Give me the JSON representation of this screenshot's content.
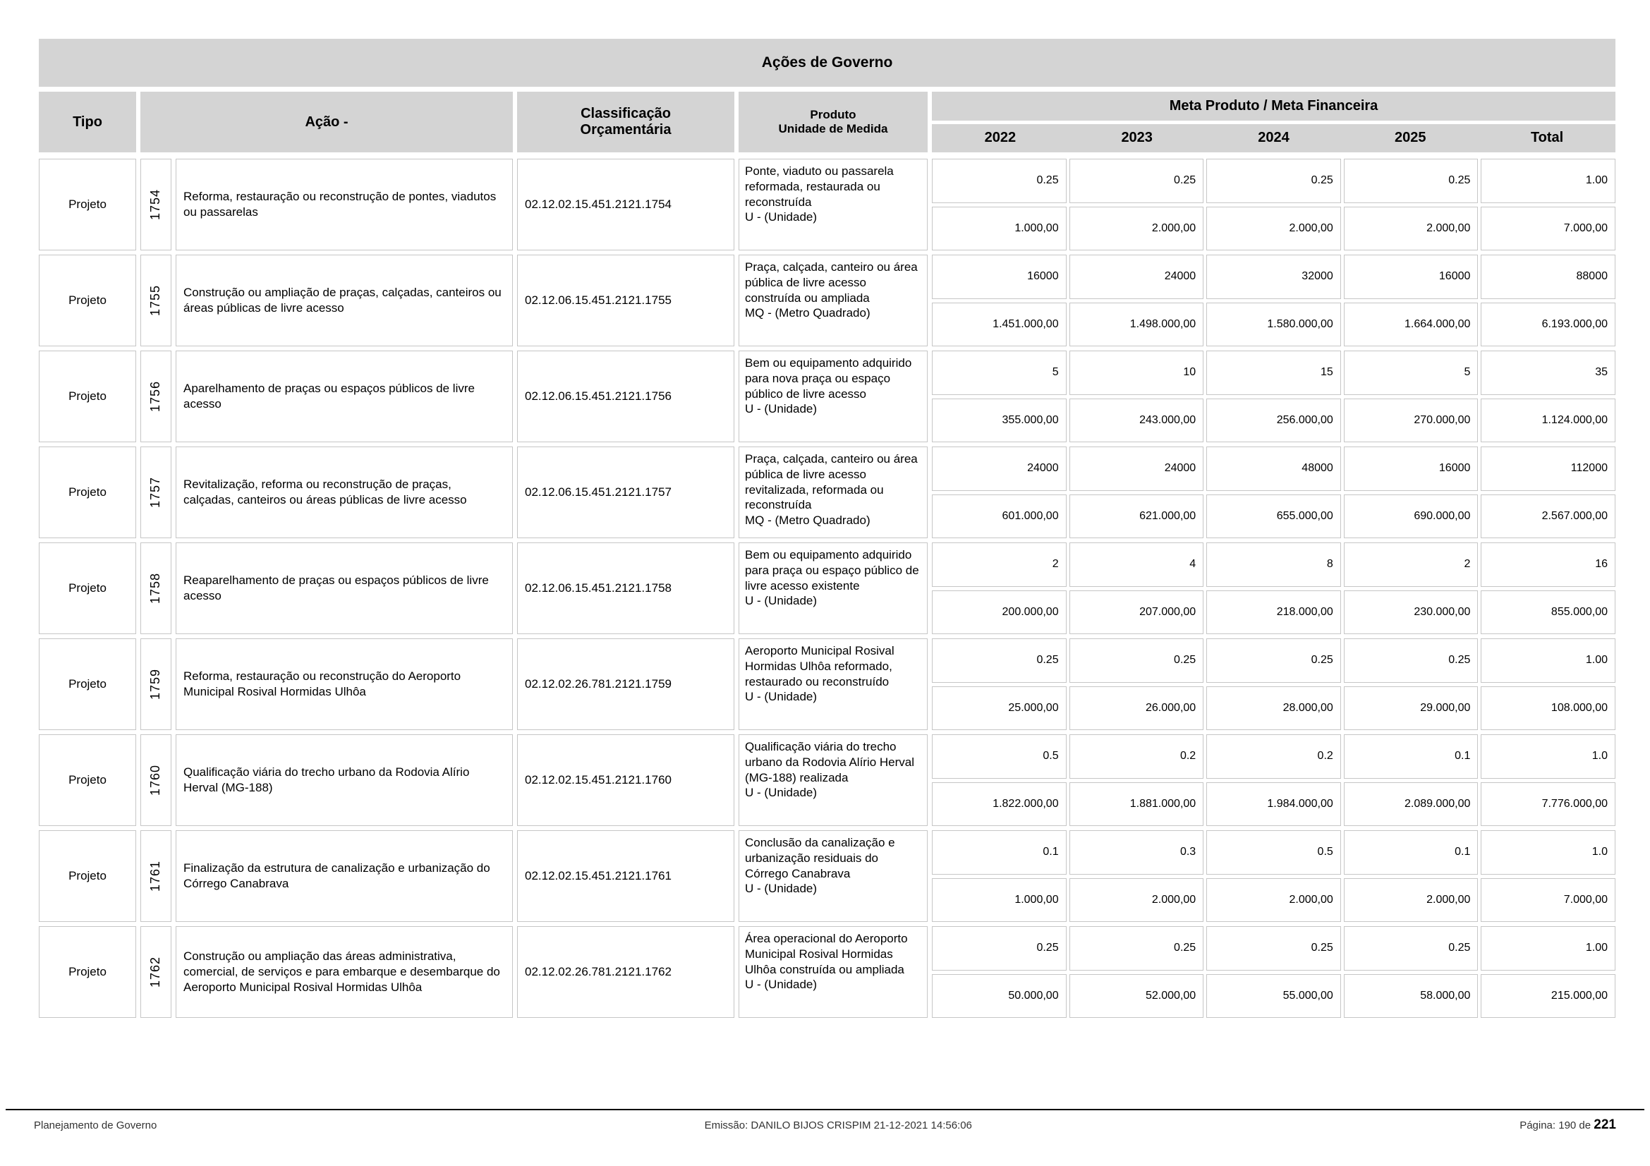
{
  "title": "Ações de Governo",
  "columns": {
    "tipo": "Tipo",
    "acao": "Ação -",
    "classificacao": "Classificação\nOrçamentária",
    "produto": "Produto\nUnidade de Medida",
    "meta": "Meta Produto / Meta Financeira",
    "years": [
      "2022",
      "2023",
      "2024",
      "2025",
      "Total"
    ]
  },
  "colors": {
    "header_bg": "#d4d4d4",
    "cell_border": "#c6c6c6"
  },
  "rows": [
    {
      "tipo": "Projeto",
      "numero": "1754",
      "acao": "Reforma, restauração ou reconstrução de pontes, viadutos ou passarelas",
      "classificacao": "02.12.02.15.451.2121.1754",
      "produto": "Ponte, viaduto ou passarela reformada, restaurada ou reconstruída",
      "unidade": "U - (Unidade)",
      "meta_produto": [
        "0.25",
        "0.25",
        "0.25",
        "0.25",
        "1.00"
      ],
      "meta_financeira": [
        "1.000,00",
        "2.000,00",
        "2.000,00",
        "2.000,00",
        "7.000,00"
      ]
    },
    {
      "tipo": "Projeto",
      "numero": "1755",
      "acao": "Construção ou ampliação de praças, calçadas, canteiros ou áreas públicas de livre acesso",
      "classificacao": "02.12.06.15.451.2121.1755",
      "produto": "Praça, calçada, canteiro ou área pública de livre acesso construída ou ampliada",
      "unidade": "MQ - (Metro Quadrado)",
      "meta_produto": [
        "16000",
        "24000",
        "32000",
        "16000",
        "88000"
      ],
      "meta_financeira": [
        "1.451.000,00",
        "1.498.000,00",
        "1.580.000,00",
        "1.664.000,00",
        "6.193.000,00"
      ]
    },
    {
      "tipo": "Projeto",
      "numero": "1756",
      "acao": "Aparelhamento de praças ou espaços públicos de livre acesso",
      "classificacao": "02.12.06.15.451.2121.1756",
      "produto": "Bem ou equipamento adquirido para nova praça ou espaço público de livre acesso",
      "unidade": "U - (Unidade)",
      "meta_produto": [
        "5",
        "10",
        "15",
        "5",
        "35"
      ],
      "meta_financeira": [
        "355.000,00",
        "243.000,00",
        "256.000,00",
        "270.000,00",
        "1.124.000,00"
      ]
    },
    {
      "tipo": "Projeto",
      "numero": "1757",
      "acao": "Revitalização, reforma ou reconstrução de praças, calçadas, canteiros ou áreas públicas de livre acesso",
      "classificacao": "02.12.06.15.451.2121.1757",
      "produto": "Praça, calçada, canteiro ou área pública de livre acesso revitalizada, reformada ou reconstruída",
      "unidade": "MQ - (Metro Quadrado)",
      "meta_produto": [
        "24000",
        "24000",
        "48000",
        "16000",
        "112000"
      ],
      "meta_financeira": [
        "601.000,00",
        "621.000,00",
        "655.000,00",
        "690.000,00",
        "2.567.000,00"
      ]
    },
    {
      "tipo": "Projeto",
      "numero": "1758",
      "acao": "Reaparelhamento de praças ou espaços públicos de livre acesso",
      "classificacao": "02.12.06.15.451.2121.1758",
      "produto": "Bem ou equipamento adquirido para praça ou espaço público de livre acesso existente",
      "unidade": "U - (Unidade)",
      "meta_produto": [
        "2",
        "4",
        "8",
        "2",
        "16"
      ],
      "meta_financeira": [
        "200.000,00",
        "207.000,00",
        "218.000,00",
        "230.000,00",
        "855.000,00"
      ]
    },
    {
      "tipo": "Projeto",
      "numero": "1759",
      "acao": "Reforma, restauração ou reconstrução do Aeroporto Municipal Rosival Hormidas Ulhôa",
      "classificacao": "02.12.02.26.781.2121.1759",
      "produto": "Aeroporto Municipal Rosival Hormidas Ulhôa reformado, restaurado ou reconstruído",
      "unidade": "U - (Unidade)",
      "meta_produto": [
        "0.25",
        "0.25",
        "0.25",
        "0.25",
        "1.00"
      ],
      "meta_financeira": [
        "25.000,00",
        "26.000,00",
        "28.000,00",
        "29.000,00",
        "108.000,00"
      ]
    },
    {
      "tipo": "Projeto",
      "numero": "1760",
      "acao": "Qualificação viária  do trecho urbano da Rodovia Alírio Herval (MG-188)",
      "classificacao": "02.12.02.15.451.2121.1760",
      "produto": "Qualificação viária do trecho urbano da Rodovia Alírio Herval (MG-188) realizada",
      "unidade": "U - (Unidade)",
      "meta_produto": [
        "0.5",
        "0.2",
        "0.2",
        "0.1",
        "1.0"
      ],
      "meta_financeira": [
        "1.822.000,00",
        "1.881.000,00",
        "1.984.000,00",
        "2.089.000,00",
        "7.776.000,00"
      ]
    },
    {
      "tipo": "Projeto",
      "numero": "1761",
      "acao": "Finalização da estrutura de canalização e urbanização do Córrego Canabrava",
      "classificacao": "02.12.02.15.451.2121.1761",
      "produto": "Conclusão da canalização e urbanização residuais do Córrego Canabrava",
      "unidade": "U - (Unidade)",
      "meta_produto": [
        "0.1",
        "0.3",
        "0.5",
        "0.1",
        "1.0"
      ],
      "meta_financeira": [
        "1.000,00",
        "2.000,00",
        "2.000,00",
        "2.000,00",
        "7.000,00"
      ]
    },
    {
      "tipo": "Projeto",
      "numero": "1762",
      "acao": "Construção ou ampliação das áreas administrativa, comercial, de serviços e para embarque e desembarque do Aeroporto Municipal Rosival Hormidas Ulhôa",
      "classificacao": "02.12.02.26.781.2121.1762",
      "produto": "Área operacional do Aeroporto Municipal Rosival Hormidas Ulhôa construída ou ampliada",
      "unidade": "U - (Unidade)",
      "meta_produto": [
        "0.25",
        "0.25",
        "0.25",
        "0.25",
        "1.00"
      ],
      "meta_financeira": [
        "50.000,00",
        "52.000,00",
        "55.000,00",
        "58.000,00",
        "215.000,00"
      ]
    }
  ],
  "footer": {
    "left": "Planejamento de Governo",
    "center": "Emissão: DANILO BIJOS CRISPIM 21-12-2021 14:56:06",
    "right_label": "Página: 190 de",
    "right_page": "221"
  }
}
